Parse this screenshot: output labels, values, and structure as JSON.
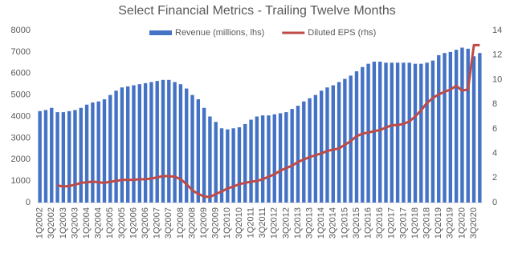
{
  "chart_data": {
    "type": "bar-line",
    "title": "Select Financial Metrics - Trailing Twelve Months",
    "categories": [
      "1Q2002",
      null,
      "3Q2002",
      null,
      "1Q2003",
      null,
      "3Q2003",
      null,
      "1Q2004",
      null,
      "3Q2004",
      null,
      "1Q2005",
      null,
      "3Q2005",
      null,
      "1Q2006",
      null,
      "3Q2006",
      null,
      "1Q2007",
      null,
      "3Q2007",
      null,
      "1Q2008",
      null,
      "3Q2008",
      null,
      "1Q2009",
      null,
      "3Q2009",
      null,
      "1Q2010",
      null,
      "3Q2010",
      null,
      "1Q2011",
      null,
      "3Q2011",
      null,
      "1Q2012",
      null,
      "3Q2012",
      null,
      "1Q2013",
      null,
      "3Q2013",
      null,
      "1Q2014",
      null,
      "3Q2014",
      null,
      "1Q2015",
      null,
      "3Q2015",
      null,
      "1Q2016",
      null,
      "3Q2016",
      null,
      "1Q2017",
      null,
      "3Q2017",
      null,
      "1Q2018",
      null,
      "3Q2018",
      null,
      "1Q2019",
      null,
      "3Q2019",
      null,
      "1Q2020",
      null,
      "3Q2020",
      null
    ],
    "series": [
      {
        "name": "Revenue (millions, lhs)",
        "type": "bar",
        "axis": "y",
        "color": "#4472c4",
        "values": [
          4250,
          4300,
          4400,
          4200,
          4200,
          4250,
          4300,
          4400,
          4550,
          4650,
          4700,
          4800,
          5000,
          5200,
          5350,
          5400,
          5450,
          5500,
          5550,
          5600,
          5650,
          5700,
          5700,
          5600,
          5500,
          5300,
          5000,
          4800,
          4400,
          4000,
          3750,
          3450,
          3400,
          3450,
          3500,
          3650,
          3850,
          4000,
          4050,
          4050,
          4100,
          4150,
          4200,
          4350,
          4500,
          4700,
          4850,
          5000,
          5200,
          5350,
          5450,
          5600,
          5750,
          5900,
          6100,
          6300,
          6450,
          6550,
          6550,
          6500,
          6500,
          6500,
          6500,
          6500,
          6450,
          6450,
          6500,
          6600,
          6850,
          6950,
          7000,
          7100,
          7200,
          7150,
          6800,
          6950
        ]
      },
      {
        "name": "Diluted EPS (rhs)",
        "type": "line",
        "axis": "y2",
        "color": "#be4b48",
        "values": [
          null,
          null,
          null,
          1.4,
          1.3,
          1.35,
          1.45,
          1.6,
          1.65,
          1.7,
          1.65,
          1.6,
          1.7,
          1.75,
          1.85,
          1.85,
          1.85,
          1.9,
          1.9,
          1.95,
          2.05,
          2.15,
          2.15,
          2.1,
          1.9,
          1.5,
          1.0,
          0.7,
          0.5,
          0.45,
          0.7,
          0.9,
          1.15,
          1.3,
          1.5,
          1.6,
          1.7,
          1.75,
          1.9,
          2.1,
          2.3,
          2.6,
          2.8,
          3.0,
          3.3,
          3.5,
          3.7,
          3.85,
          4.0,
          4.2,
          4.3,
          4.4,
          4.7,
          5.0,
          5.4,
          5.6,
          5.7,
          5.8,
          5.9,
          6.1,
          6.3,
          6.3,
          6.4,
          6.6,
          7.0,
          7.5,
          8.1,
          8.5,
          8.8,
          9.0,
          9.2,
          9.5,
          9.1,
          9.2,
          12.8,
          12.8
        ]
      }
    ],
    "ylim": [
      0,
      8000
    ],
    "yticks": [
      0,
      1000,
      2000,
      3000,
      4000,
      5000,
      6000,
      7000,
      8000
    ],
    "y2lim": [
      0,
      14
    ],
    "y2ticks": [
      0,
      2,
      4,
      6,
      8,
      10,
      12,
      14
    ],
    "legend": "top",
    "grid": false
  }
}
